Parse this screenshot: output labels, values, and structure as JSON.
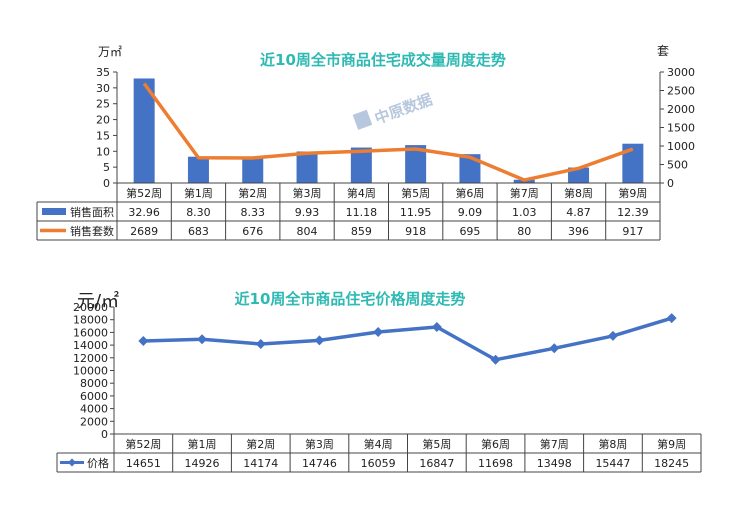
{
  "chart_data": [
    {
      "type": "bar",
      "title": "近10周全市商品住宅成交量周度走势",
      "y_unit_left": "万㎡",
      "y_unit_right": "套",
      "categories": [
        "第52周",
        "第1周",
        "第2周",
        "第3周",
        "第4周",
        "第5周",
        "第6周",
        "第7周",
        "第8周",
        "第9周"
      ],
      "ylim_left": [
        0,
        35
      ],
      "yticks_left": [
        "0",
        "5",
        "10",
        "15",
        "20",
        "25",
        "30",
        "35"
      ],
      "ylim_right": [
        0,
        3000
      ],
      "yticks_right": [
        "0",
        "500",
        "1000",
        "1500",
        "2000",
        "2500",
        "3000"
      ],
      "series": [
        {
          "name": "销售面积",
          "type": "bar",
          "axis": "left",
          "color": "#4472c4",
          "values": [
            32.96,
            8.3,
            8.33,
            9.93,
            11.18,
            11.95,
            9.09,
            1.03,
            4.87,
            12.39
          ],
          "labels": [
            "32.96",
            "8.30",
            "8.33",
            "9.93",
            "11.18",
            "11.95",
            "9.09",
            "1.03",
            "4.87",
            "12.39"
          ]
        },
        {
          "name": "销售套数",
          "type": "line",
          "axis": "right",
          "color": "#ed7d31",
          "values": [
            2689,
            683,
            676,
            804,
            859,
            918,
            695,
            80,
            396,
            917
          ],
          "labels": [
            "2689",
            "683",
            "676",
            "804",
            "859",
            "918",
            "695",
            "80",
            "396",
            "917"
          ]
        }
      ],
      "watermark": "中原数据"
    },
    {
      "type": "line",
      "title": "近10周全市商品住宅价格周度走势",
      "y_unit": "元/㎡",
      "categories": [
        "第52周",
        "第1周",
        "第2周",
        "第3周",
        "第4周",
        "第5周",
        "第6周",
        "第7周",
        "第8周",
        "第9周"
      ],
      "ylim": [
        0,
        20000
      ],
      "yticks": [
        "0",
        "2000",
        "4000",
        "6000",
        "8000",
        "10000",
        "12000",
        "14000",
        "16000",
        "18000",
        "20000"
      ],
      "series": [
        {
          "name": "价格",
          "color": "#4472c4",
          "values": [
            14651,
            14926,
            14174,
            14746,
            16059,
            16847,
            11698,
            13498,
            15447,
            18245
          ],
          "labels": [
            "14651",
            "14926",
            "14174",
            "14746",
            "16059",
            "16847",
            "11698",
            "13498",
            "15447",
            "18245"
          ]
        }
      ]
    }
  ]
}
